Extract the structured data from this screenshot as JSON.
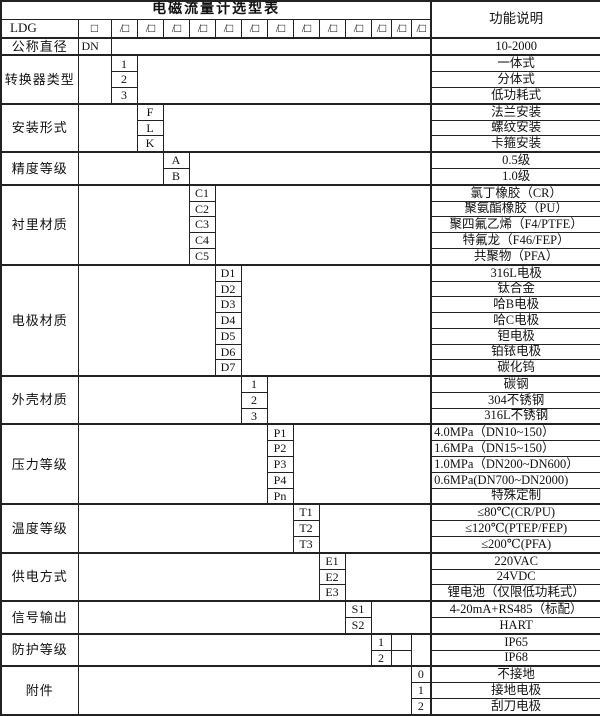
{
  "title": "电磁流量计选型表",
  "desc_header": "功能说明",
  "model_row": {
    "prefix": "LDG",
    "box": "□",
    "slots": [
      "/□",
      "/□",
      "/□",
      "/□",
      "/□",
      "/□",
      "/□",
      "/□",
      "/□",
      "/□",
      "/□",
      "/□",
      "/□"
    ]
  },
  "diameter_row": {
    "label": "公称直径",
    "code": "DN",
    "desc": "10-2000"
  },
  "categories": [
    {
      "label": "转换器类型",
      "slot": 1,
      "options": [
        {
          "code": "1",
          "desc": "一体式"
        },
        {
          "code": "2",
          "desc": "分体式"
        },
        {
          "code": "3",
          "desc": "低功耗式"
        }
      ]
    },
    {
      "label": "安装形式",
      "slot": 2,
      "options": [
        {
          "code": "F",
          "desc": "法兰安装"
        },
        {
          "code": "L",
          "desc": "螺纹安装"
        },
        {
          "code": "K",
          "desc": "卡箍安装"
        }
      ]
    },
    {
      "label": "精度等级",
      "slot": 3,
      "options": [
        {
          "code": "A",
          "desc": "0.5级"
        },
        {
          "code": "B",
          "desc": "1.0级"
        }
      ]
    },
    {
      "label": "衬里材质",
      "slot": 4,
      "options": [
        {
          "code": "C1",
          "desc": "氯丁橡胶（CR）"
        },
        {
          "code": "C2",
          "desc": "聚氨酯橡胶（PU）"
        },
        {
          "code": "C3",
          "desc": "聚四氟乙烯（F4/PTFE）"
        },
        {
          "code": "C4",
          "desc": "特氟龙（F46/FEP）"
        },
        {
          "code": "C5",
          "desc": "共聚物（PFA）"
        }
      ]
    },
    {
      "label": "电极材质",
      "slot": 5,
      "options": [
        {
          "code": "D1",
          "desc": "316L电极"
        },
        {
          "code": "D2",
          "desc": "钛合金"
        },
        {
          "code": "D3",
          "desc": "哈B电极"
        },
        {
          "code": "D4",
          "desc": "哈C电极"
        },
        {
          "code": "D5",
          "desc": "钽电极"
        },
        {
          "code": "D6",
          "desc": "铂铱电极"
        },
        {
          "code": "D7",
          "desc": "碳化钨"
        }
      ]
    },
    {
      "label": "外壳材质",
      "slot": 6,
      "options": [
        {
          "code": "1",
          "desc": "碳钢"
        },
        {
          "code": "2",
          "desc": "304不锈钢"
        },
        {
          "code": "3",
          "desc": "316L不锈钢"
        }
      ]
    },
    {
      "label": "压力等级",
      "slot": 7,
      "options": [
        {
          "code": "P1",
          "desc": "4.0MPa（DN10~150）",
          "align": "left"
        },
        {
          "code": "P2",
          "desc": "1.6MPa（DN15~150）",
          "align": "left"
        },
        {
          "code": "P3",
          "desc": "1.0MPa（DN200~DN600）",
          "align": "left"
        },
        {
          "code": "P4",
          "desc": "0.6MPa(DN700~DN2000)",
          "align": "left"
        },
        {
          "code": "Pn",
          "desc": "特殊定制"
        }
      ]
    },
    {
      "label": "温度等级",
      "slot": 8,
      "options": [
        {
          "code": "T1",
          "desc": "≤80℃(CR/PU)"
        },
        {
          "code": "T2",
          "desc": "≤120℃(PTEP/FEP)"
        },
        {
          "code": "T3",
          "desc": "≤200℃(PFA)"
        }
      ]
    },
    {
      "label": "供电方式",
      "slot": 9,
      "options": [
        {
          "code": "E1",
          "desc": "220VAC"
        },
        {
          "code": "E2",
          "desc": "24VDC"
        },
        {
          "code": "E3",
          "desc": "锂电池（仅限低功耗式）"
        }
      ]
    },
    {
      "label": "信号输出",
      "slot": 10,
      "options": [
        {
          "code": "S1",
          "desc": "4-20mA+RS485（标配）"
        },
        {
          "code": "S2",
          "desc": "HART"
        }
      ]
    },
    {
      "label": "防护等级",
      "slot": 11,
      "trailing_split": true,
      "options": [
        {
          "code": "1",
          "desc": "IP65"
        },
        {
          "code": "2",
          "desc": "IP68"
        }
      ]
    },
    {
      "label": "附件",
      "slot": 13,
      "options": [
        {
          "code": "0",
          "desc": "不接地"
        },
        {
          "code": "1",
          "desc": "接地电极"
        },
        {
          "code": "2",
          "desc": "刮刀电极"
        }
      ]
    }
  ]
}
